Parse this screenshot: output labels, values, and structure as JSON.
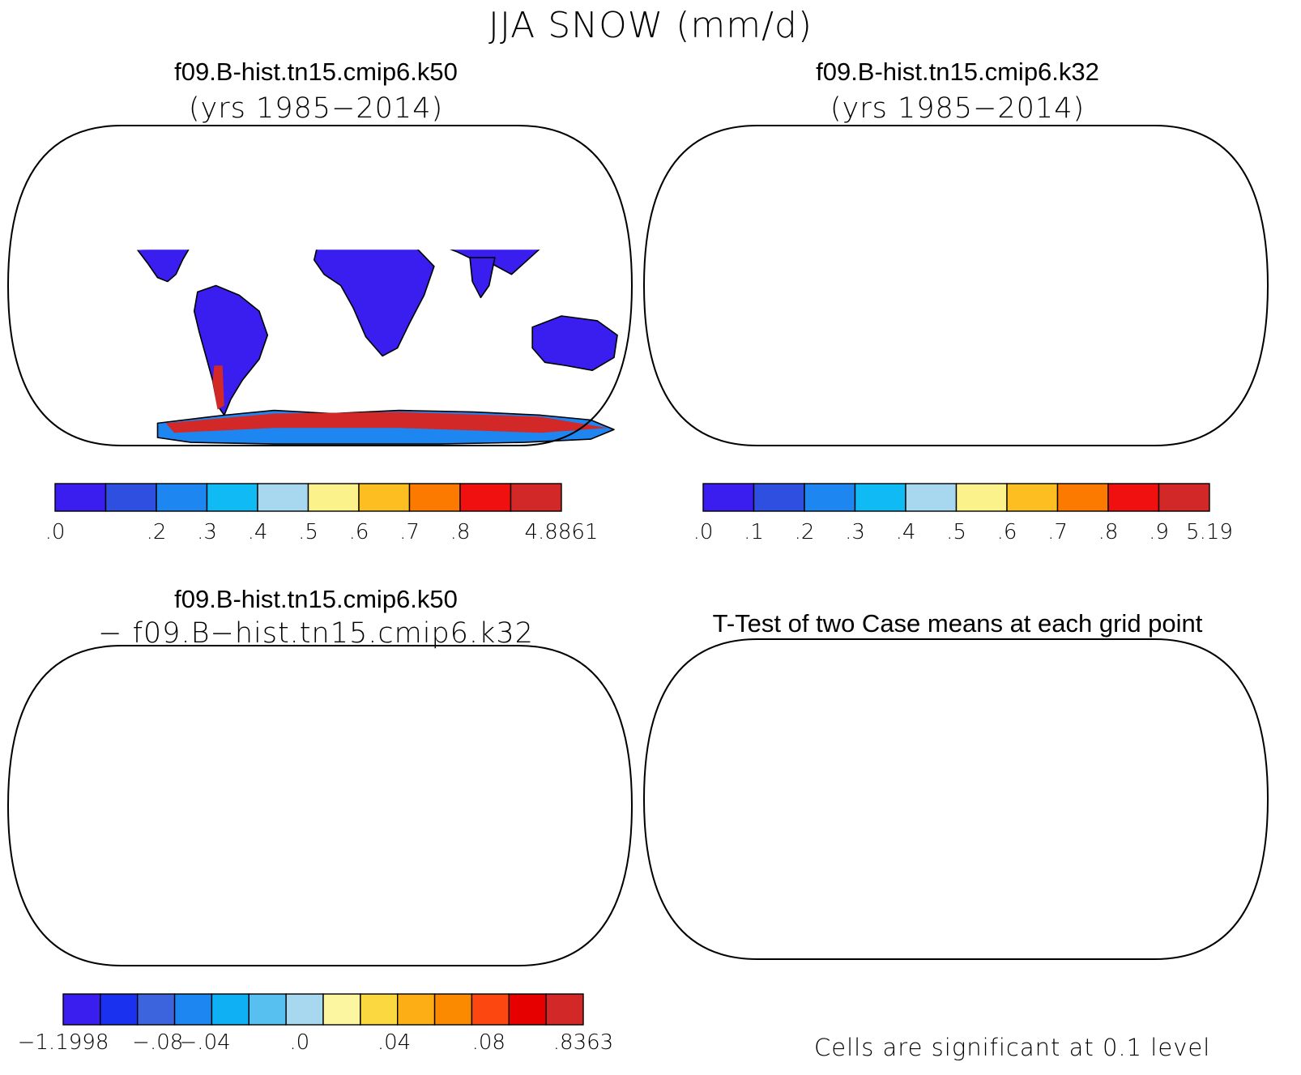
{
  "main_title": "JJA SNOW (mm/d)",
  "panels": [
    {
      "title": "f09.B-hist.tn15.cmip6.k50",
      "subtitle": "(yrs 1985−2014)",
      "colorbar": {
        "colors": [
          "#3a1ef0",
          "#2f4fe0",
          "#1e86f0",
          "#10bbf5",
          "#a8d8f0",
          "#fcf28c",
          "#fcbe20",
          "#fc7a00",
          "#f01010",
          "#d22828"
        ],
        "labels": [
          ".0",
          "",
          ".2",
          ".3",
          ".4",
          ".5",
          ".6",
          ".7",
          ".8",
          "",
          "4.8861"
        ]
      }
    },
    {
      "title": "f09.B-hist.tn15.cmip6.k32",
      "subtitle": "(yrs 1985−2014)",
      "colorbar": {
        "colors": [
          "#3a1ef0",
          "#2f4fe0",
          "#1e86f0",
          "#10bbf5",
          "#a8d8f0",
          "#fcf28c",
          "#fcbe20",
          "#fc7a00",
          "#f01010",
          "#d22828"
        ],
        "labels": [
          ".0",
          ".1",
          ".2",
          ".3",
          ".4",
          ".5",
          ".6",
          ".7",
          ".8",
          ".9",
          "5.19"
        ]
      }
    },
    {
      "title": "f09.B-hist.tn15.cmip6.k50",
      "subtitle": "− f09.B−hist.tn15.cmip6.k32",
      "colorbar": {
        "colors": [
          "#3a1ef0",
          "#1a32f0",
          "#3c64dc",
          "#1e86f0",
          "#10b0f5",
          "#58c0f0",
          "#a8d8f0",
          "#fcf6a0",
          "#fcd840",
          "#fcae14",
          "#fc8a00",
          "#fc4810",
          "#e60000",
          "#d22828"
        ],
        "labels": [
          "−1.1998",
          "",
          "−.08",
          "−.04",
          "",
          ".0",
          "",
          ".04",
          "",
          ".08",
          "",
          ".8363"
        ]
      }
    },
    {
      "title": "T-Test of two Case means at each grid point",
      "note": "Cells are significant at 0.1 level"
    }
  ]
}
